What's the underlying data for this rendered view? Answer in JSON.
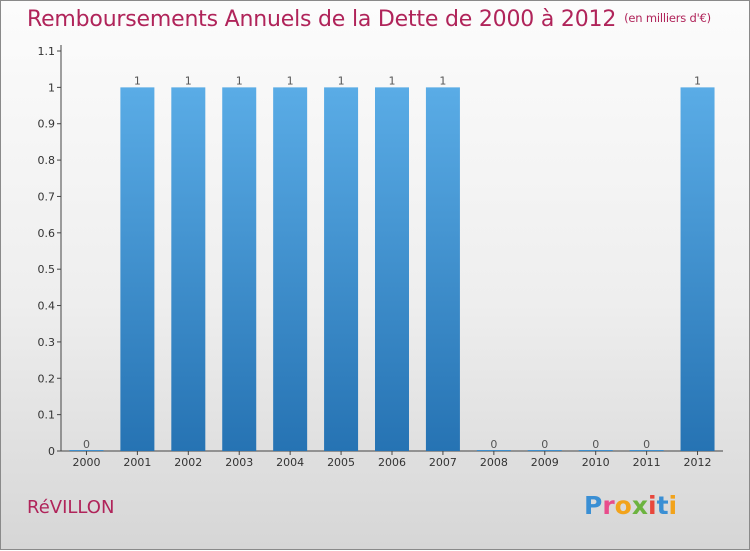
{
  "header": {
    "title": "Remboursements Annuels de la Dette de 2000 à 2012",
    "unit": "(en milliers d'€)"
  },
  "commune": "RéVILLON",
  "logo": {
    "text": "Proxiti",
    "letters": [
      {
        "ch": "P",
        "color": "#3a8fd4"
      },
      {
        "ch": "r",
        "color": "#e84c8b"
      },
      {
        "ch": "o",
        "color": "#f2a31b"
      },
      {
        "ch": "x",
        "color": "#6cb33f"
      },
      {
        "ch": "i",
        "color": "#e8473b"
      },
      {
        "ch": "t",
        "color": "#3a8fd4"
      },
      {
        "ch": "i",
        "color": "#f2a31b"
      }
    ]
  },
  "chart_data": {
    "type": "bar",
    "title": "Remboursements Annuels de la Dette de 2000 à 2012",
    "subtitle": "(en milliers d'€)",
    "categories": [
      "2000",
      "2001",
      "2002",
      "2003",
      "2004",
      "2005",
      "2006",
      "2007",
      "2008",
      "2009",
      "2010",
      "2011",
      "2012"
    ],
    "values": [
      0,
      1,
      1,
      1,
      1,
      1,
      1,
      1,
      0,
      0,
      0,
      0,
      1
    ],
    "data_labels": [
      "0",
      "1",
      "1",
      "1",
      "1",
      "1",
      "1",
      "1",
      "0",
      "0",
      "0",
      "0",
      "1"
    ],
    "ylim": [
      0,
      1.1
    ],
    "yticks": [
      0,
      0.1,
      0.2,
      0.3,
      0.4,
      0.5,
      0.6,
      0.7,
      0.8,
      0.9,
      1,
      1.1
    ],
    "ytick_labels": [
      "0",
      "0.1",
      "0.2",
      "0.3",
      "0.4",
      "0.5",
      "0.6",
      "0.7",
      "0.8",
      "0.9",
      "1",
      "1.1"
    ],
    "grid": false,
    "colors": {
      "bar_top": "#5aace6",
      "bar_bottom": "#2673b3",
      "axis": "#444444"
    }
  }
}
